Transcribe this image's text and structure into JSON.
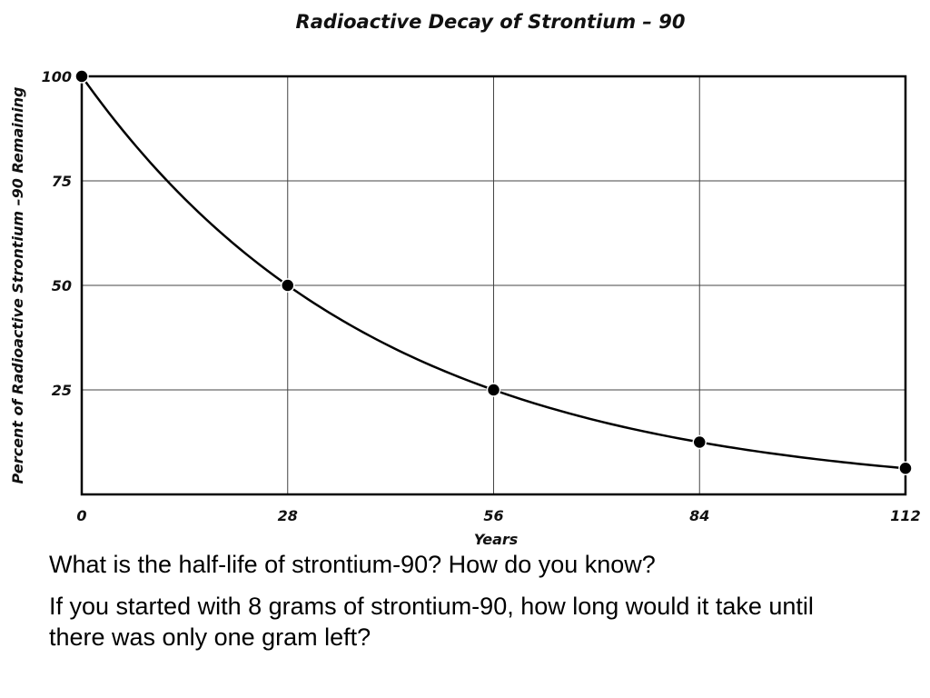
{
  "chart_data": {
    "type": "line",
    "title": "Radioactive Decay of Strontium – 90",
    "xlabel": "Years",
    "ylabel": "Percent of Radioactive Strontium –90 Remaining",
    "x_ticks": [
      "0",
      "28",
      "56",
      "84",
      "112"
    ],
    "y_ticks": [
      "100",
      "75",
      "50",
      "25"
    ],
    "xlim": [
      0,
      112
    ],
    "ylim": [
      0,
      100
    ],
    "grid": true,
    "series": [
      {
        "x": [
          0,
          28,
          56,
          84,
          112
        ],
        "y": [
          100,
          50,
          25,
          12.5,
          6.25
        ],
        "markers": true,
        "smooth_exponential_curve": true
      }
    ]
  },
  "questions": {
    "q1": "What is the half-life of strontium-90? How do you know?",
    "q2": "If you started with 8 grams of strontium-90, how long would it take until there was only one gram left?"
  }
}
